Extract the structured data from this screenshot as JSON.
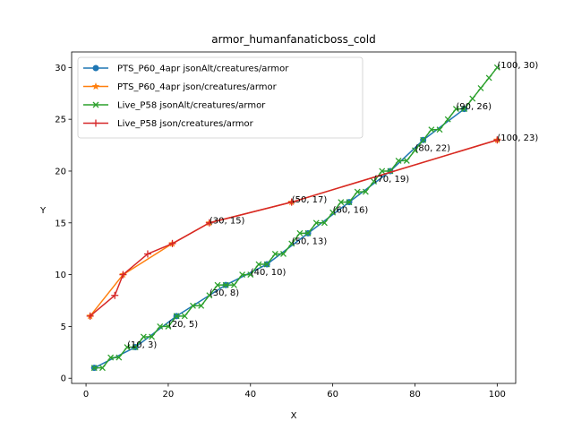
{
  "chart_data": {
    "type": "line",
    "title": "armor_humanfanaticboss_cold",
    "xlabel": "X",
    "ylabel": "Y",
    "xlim": [
      -3.5,
      104.5
    ],
    "ylim": [
      -0.5,
      31.5
    ],
    "xticks": [
      0,
      20,
      40,
      60,
      80,
      100
    ],
    "yticks": [
      0,
      5,
      10,
      15,
      20,
      25,
      30
    ],
    "grid": false,
    "legend_position": "upper left",
    "series": [
      {
        "name": "PTS_P60_4apr jsonAlt/creatures/armor",
        "color": "#1f77b4",
        "marker": "circle",
        "x": [
          2,
          12,
          22,
          34,
          44,
          54,
          64,
          74,
          82,
          92
        ],
        "y": [
          1,
          3,
          6,
          9,
          11,
          14,
          17,
          20,
          23,
          26
        ]
      },
      {
        "name": "PTS_P60_4apr json/creatures/armor",
        "color": "#ff7f0e",
        "marker": "star",
        "x": [
          1,
          9,
          21,
          30,
          50,
          100
        ],
        "y": [
          6,
          10,
          13,
          15,
          17,
          23
        ]
      },
      {
        "name": "Live_P58 jsonAlt/creatures/armor",
        "color": "#2ca02c",
        "marker": "x",
        "x": [
          2,
          4,
          6,
          8,
          10,
          12,
          14,
          16,
          18,
          20,
          22,
          24,
          26,
          28,
          30,
          32,
          34,
          36,
          38,
          40,
          42,
          44,
          46,
          48,
          50,
          52,
          54,
          56,
          58,
          60,
          62,
          64,
          66,
          68,
          70,
          72,
          74,
          76,
          78,
          80,
          82,
          84,
          86,
          88,
          90,
          92,
          94,
          96,
          98,
          100
        ],
        "y": [
          1,
          1,
          2,
          2,
          3,
          3,
          4,
          4,
          5,
          5,
          6,
          6,
          7,
          7,
          8,
          9,
          9,
          9,
          10,
          10,
          11,
          11,
          12,
          12,
          13,
          14,
          14,
          15,
          15,
          16,
          17,
          17,
          18,
          18,
          19,
          20,
          20,
          21,
          21,
          22,
          23,
          24,
          24,
          25,
          26,
          26,
          27,
          28,
          29,
          30
        ]
      },
      {
        "name": "Live_P58 json/creatures/armor",
        "color": "#d62728",
        "marker": "plus",
        "x": [
          1,
          7,
          9,
          15,
          21,
          30,
          50,
          100
        ],
        "y": [
          6,
          8,
          10,
          12,
          13,
          15,
          17,
          23
        ]
      }
    ],
    "annotations": [
      {
        "text": "(10, 3)",
        "x": 10,
        "y": 3
      },
      {
        "text": "(20, 5)",
        "x": 20,
        "y": 5
      },
      {
        "text": "(30, 8)",
        "x": 30,
        "y": 8
      },
      {
        "text": "(30, 15)",
        "x": 30,
        "y": 15
      },
      {
        "text": "(40, 10)",
        "x": 40,
        "y": 10
      },
      {
        "text": "(50, 13)",
        "x": 50,
        "y": 13
      },
      {
        "text": "(50, 17)",
        "x": 50,
        "y": 17
      },
      {
        "text": "(60, 16)",
        "x": 60,
        "y": 16
      },
      {
        "text": "(70, 19)",
        "x": 70,
        "y": 19
      },
      {
        "text": "(80, 22)",
        "x": 80,
        "y": 22
      },
      {
        "text": "(90, 26)",
        "x": 90,
        "y": 26
      },
      {
        "text": "(100, 30)",
        "x": 100,
        "y": 30
      },
      {
        "text": "(100, 23)",
        "x": 100,
        "y": 23
      }
    ]
  }
}
